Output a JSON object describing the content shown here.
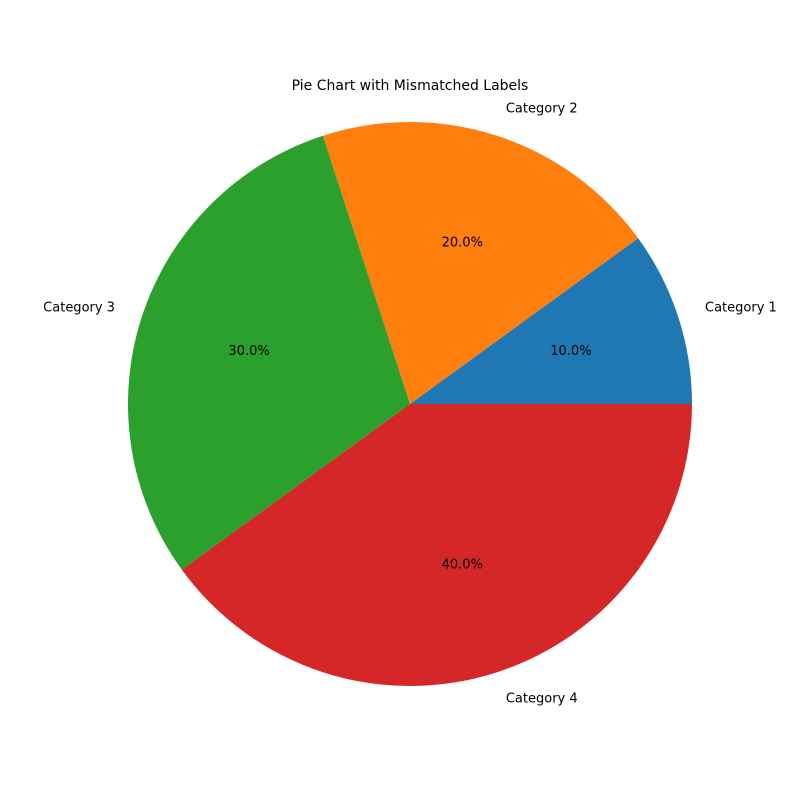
{
  "chart_data": {
    "type": "pie",
    "title": "Pie Chart with Mismatched Labels",
    "start_angle_deg": 0,
    "direction": "counterclockwise",
    "slices": [
      {
        "label": "Category 1",
        "value": 10,
        "percent_label": "10.0%",
        "color": "#1f77b4"
      },
      {
        "label": "Category 2",
        "value": 20,
        "percent_label": "20.0%",
        "color": "#ff7f0e"
      },
      {
        "label": "Category 3",
        "value": 30,
        "percent_label": "30.0%",
        "color": "#2ca02c"
      },
      {
        "label": "Category 4",
        "value": 40,
        "percent_label": "40.0%",
        "color": "#d62728"
      }
    ]
  }
}
